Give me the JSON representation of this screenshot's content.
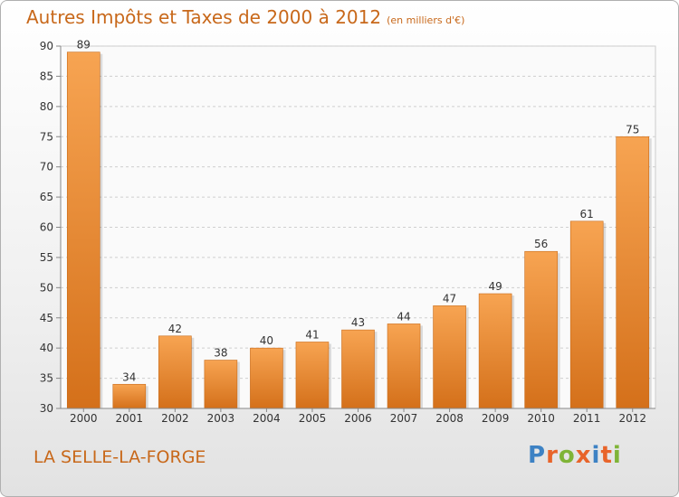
{
  "chart_data": {
    "type": "bar",
    "title": "Autres Impôts et Taxes de 2000 à 2012",
    "subtitle": "(en milliers d'€)",
    "categories": [
      "2000",
      "2001",
      "2002",
      "2003",
      "2004",
      "2005",
      "2006",
      "2007",
      "2008",
      "2009",
      "2010",
      "2011",
      "2012"
    ],
    "values": [
      89,
      34,
      42,
      38,
      40,
      41,
      43,
      44,
      47,
      49,
      56,
      61,
      75
    ],
    "data_labels": [
      "89",
      "34",
      "42",
      "38",
      "40",
      "41",
      "43",
      "44",
      "47",
      "49",
      "56",
      "61",
      "75"
    ],
    "ylim": [
      30,
      90
    ],
    "yticks": [
      "30",
      "35",
      "40",
      "45",
      "50",
      "55",
      "60",
      "65",
      "70",
      "75",
      "80",
      "85",
      "90"
    ],
    "grid": "horizontal-dashed",
    "bar_color": "#f0902e"
  },
  "footer": {
    "location": "LA SELLE-LA-FORGE",
    "brand_letters": [
      "P",
      "r",
      "o",
      "x",
      "i",
      "t",
      "i"
    ],
    "brand_colors": [
      "#3d82c4",
      "#e8642a",
      "#7fb437",
      "#e8642a",
      "#3d82c4",
      "#e8642a",
      "#7fb437"
    ]
  }
}
